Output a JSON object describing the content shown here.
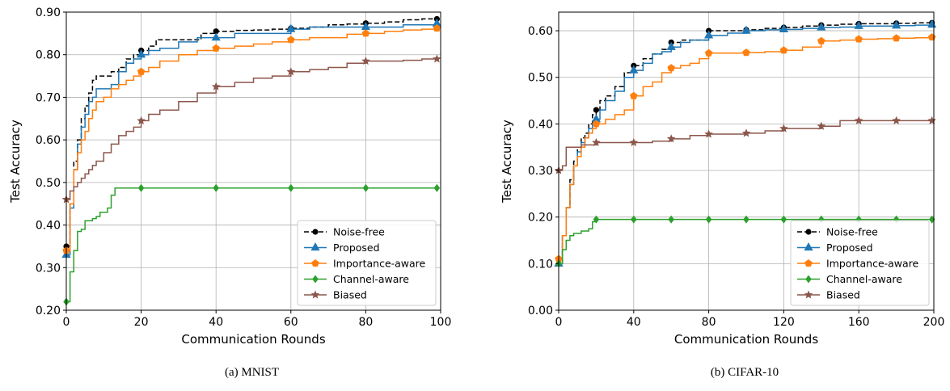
{
  "chart_data": [
    {
      "type": "line",
      "caption": "(a) MNIST",
      "xlabel": "Communication Rounds",
      "ylabel": "Test Accuracy",
      "xlim": [
        0,
        100
      ],
      "ylim": [
        0.2,
        0.9
      ],
      "xticks": [
        0,
        20,
        40,
        60,
        80,
        100
      ],
      "yticks": [
        0.2,
        0.3,
        0.4,
        0.5,
        0.6,
        0.7,
        0.8,
        0.9
      ],
      "x_tick_labels": [
        "0",
        "20",
        "40",
        "60",
        "80",
        "100"
      ],
      "y_tick_labels": [
        "0.20",
        "0.30",
        "0.40",
        "0.50",
        "0.60",
        "0.70",
        "0.80",
        "0.90"
      ],
      "grid": true,
      "legend_position": "lower-right",
      "series": [
        {
          "name": "Noise-free",
          "color": "#000000",
          "dashed": true,
          "marker": "circle",
          "x": [
            0,
            1,
            2,
            3,
            4,
            5,
            6,
            7,
            8,
            10,
            12,
            14,
            16,
            18,
            20,
            22,
            24,
            28,
            32,
            36,
            40,
            45,
            50,
            55,
            60,
            65,
            70,
            75,
            80,
            85,
            90,
            95,
            99
          ],
          "y": [
            0.35,
            0.45,
            0.55,
            0.6,
            0.65,
            0.68,
            0.71,
            0.74,
            0.75,
            0.75,
            0.76,
            0.77,
            0.79,
            0.8,
            0.81,
            0.82,
            0.835,
            0.835,
            0.835,
            0.85,
            0.855,
            0.857,
            0.858,
            0.86,
            0.862,
            0.865,
            0.87,
            0.872,
            0.874,
            0.877,
            0.882,
            0.884,
            0.884
          ],
          "marker_x": [
            0,
            20,
            40,
            60,
            80,
            99
          ],
          "marker_y": [
            0.35,
            0.81,
            0.855,
            0.862,
            0.874,
            0.884
          ]
        },
        {
          "name": "Proposed",
          "color": "#1f77b4",
          "dashed": false,
          "marker": "triangle",
          "x": [
            0,
            1,
            2,
            3,
            4,
            5,
            6,
            7,
            8,
            10,
            12,
            14,
            16,
            18,
            20,
            22,
            25,
            30,
            35,
            40,
            45,
            50,
            55,
            60,
            65,
            70,
            80,
            90,
            99
          ],
          "y": [
            0.33,
            0.44,
            0.53,
            0.59,
            0.63,
            0.66,
            0.69,
            0.7,
            0.72,
            0.72,
            0.73,
            0.76,
            0.78,
            0.79,
            0.8,
            0.81,
            0.815,
            0.83,
            0.84,
            0.84,
            0.85,
            0.85,
            0.85,
            0.86,
            0.865,
            0.865,
            0.865,
            0.87,
            0.873
          ],
          "marker_x": [
            0,
            20,
            40,
            60,
            80,
            99
          ],
          "marker_y": [
            0.33,
            0.8,
            0.84,
            0.86,
            0.865,
            0.873
          ]
        },
        {
          "name": "Importance-aware",
          "color": "#ff7f0e",
          "dashed": false,
          "marker": "pentagon",
          "x": [
            0,
            1,
            2,
            3,
            4,
            5,
            6,
            7,
            8,
            10,
            12,
            14,
            16,
            18,
            20,
            22,
            25,
            30,
            35,
            40,
            45,
            50,
            55,
            60,
            65,
            70,
            75,
            80,
            85,
            90,
            95,
            99
          ],
          "y": [
            0.34,
            0.45,
            0.53,
            0.57,
            0.6,
            0.62,
            0.65,
            0.67,
            0.69,
            0.7,
            0.72,
            0.73,
            0.74,
            0.75,
            0.76,
            0.77,
            0.785,
            0.8,
            0.81,
            0.815,
            0.82,
            0.825,
            0.83,
            0.835,
            0.84,
            0.84,
            0.848,
            0.85,
            0.855,
            0.858,
            0.86,
            0.862
          ],
          "marker_x": [
            0,
            20,
            40,
            60,
            80,
            99
          ],
          "marker_y": [
            0.34,
            0.76,
            0.815,
            0.835,
            0.85,
            0.862
          ]
        },
        {
          "name": "Channel-aware",
          "color": "#2ca02c",
          "dashed": false,
          "marker": "diamond",
          "x": [
            0,
            1,
            2,
            3,
            4,
            5,
            6,
            7,
            8,
            9,
            10,
            11,
            12,
            13,
            20,
            40,
            60,
            80,
            99
          ],
          "y": [
            0.22,
            0.29,
            0.34,
            0.385,
            0.39,
            0.41,
            0.41,
            0.415,
            0.42,
            0.43,
            0.43,
            0.44,
            0.47,
            0.487,
            0.487,
            0.487,
            0.487,
            0.487,
            0.487
          ],
          "marker_x": [
            0,
            20,
            40,
            60,
            80,
            99
          ],
          "marker_y": [
            0.22,
            0.487,
            0.487,
            0.487,
            0.487,
            0.487
          ]
        },
        {
          "name": "Biased",
          "color": "#8c564b",
          "dashed": false,
          "marker": "star",
          "x": [
            0,
            1,
            2,
            3,
            4,
            5,
            6,
            7,
            8,
            10,
            12,
            14,
            16,
            18,
            20,
            22,
            25,
            30,
            35,
            40,
            45,
            50,
            55,
            60,
            65,
            70,
            75,
            80,
            85,
            90,
            95,
            99
          ],
          "y": [
            0.46,
            0.48,
            0.49,
            0.5,
            0.51,
            0.52,
            0.53,
            0.54,
            0.55,
            0.57,
            0.59,
            0.61,
            0.62,
            0.63,
            0.645,
            0.66,
            0.67,
            0.69,
            0.71,
            0.725,
            0.735,
            0.745,
            0.75,
            0.76,
            0.765,
            0.77,
            0.78,
            0.785,
            0.785,
            0.787,
            0.79,
            0.79
          ],
          "marker_x": [
            0,
            20,
            40,
            60,
            80,
            99
          ],
          "marker_y": [
            0.46,
            0.645,
            0.725,
            0.76,
            0.785,
            0.79
          ]
        }
      ]
    },
    {
      "type": "line",
      "caption": "(b) CIFAR-10",
      "xlabel": "Communication Rounds",
      "ylabel": "Test Accuracy",
      "xlim": [
        0,
        200
      ],
      "ylim": [
        0.0,
        0.64
      ],
      "xticks": [
        0,
        40,
        80,
        120,
        160,
        200
      ],
      "yticks": [
        0.0,
        0.1,
        0.2,
        0.3,
        0.4,
        0.5,
        0.6
      ],
      "x_tick_labels": [
        "0",
        "40",
        "80",
        "120",
        "160",
        "200"
      ],
      "y_tick_labels": [
        "0.00",
        "0.10",
        "0.20",
        "0.30",
        "0.40",
        "0.50",
        "0.60"
      ],
      "grid": true,
      "legend_position": "lower-right",
      "series": [
        {
          "name": "Noise-free",
          "color": "#000000",
          "dashed": true,
          "marker": "circle",
          "x": [
            0,
            2,
            4,
            6,
            8,
            10,
            12,
            14,
            16,
            18,
            20,
            22,
            25,
            30,
            35,
            40,
            45,
            50,
            55,
            60,
            65,
            70,
            80,
            90,
            100,
            110,
            120,
            130,
            140,
            150,
            160,
            170,
            180,
            190,
            199
          ],
          "y": [
            0.11,
            0.16,
            0.22,
            0.28,
            0.32,
            0.35,
            0.37,
            0.38,
            0.4,
            0.42,
            0.43,
            0.45,
            0.46,
            0.48,
            0.51,
            0.525,
            0.54,
            0.55,
            0.56,
            0.575,
            0.58,
            0.58,
            0.6,
            0.6,
            0.602,
            0.605,
            0.607,
            0.61,
            0.612,
            0.614,
            0.615,
            0.615,
            0.616,
            0.617,
            0.617
          ],
          "marker_x": [
            0,
            20,
            40,
            60,
            80,
            100,
            120,
            140,
            160,
            180,
            199
          ],
          "marker_y": [
            0.11,
            0.43,
            0.525,
            0.575,
            0.6,
            0.602,
            0.607,
            0.612,
            0.615,
            0.616,
            0.617
          ]
        },
        {
          "name": "Proposed",
          "color": "#1f77b4",
          "dashed": false,
          "marker": "triangle",
          "x": [
            0,
            2,
            4,
            6,
            8,
            10,
            12,
            14,
            16,
            18,
            20,
            22,
            25,
            30,
            35,
            40,
            45,
            50,
            55,
            60,
            65,
            70,
            80,
            90,
            100,
            110,
            120,
            130,
            140,
            150,
            160,
            170,
            180,
            190,
            199
          ],
          "y": [
            0.1,
            0.16,
            0.22,
            0.27,
            0.31,
            0.34,
            0.36,
            0.37,
            0.39,
            0.4,
            0.41,
            0.43,
            0.45,
            0.47,
            0.5,
            0.515,
            0.53,
            0.55,
            0.555,
            0.565,
            0.575,
            0.58,
            0.59,
            0.595,
            0.6,
            0.602,
            0.603,
            0.605,
            0.607,
            0.608,
            0.61,
            0.61,
            0.611,
            0.612,
            0.613
          ],
          "marker_x": [
            0,
            20,
            40,
            60,
            80,
            100,
            120,
            140,
            160,
            180,
            199
          ],
          "marker_y": [
            0.1,
            0.41,
            0.515,
            0.565,
            0.59,
            0.6,
            0.603,
            0.607,
            0.61,
            0.611,
            0.613
          ]
        },
        {
          "name": "Importance-aware",
          "color": "#ff7f0e",
          "dashed": false,
          "marker": "pentagon",
          "x": [
            0,
            2,
            4,
            6,
            8,
            10,
            12,
            14,
            16,
            18,
            20,
            22,
            25,
            30,
            35,
            40,
            45,
            50,
            55,
            60,
            65,
            70,
            75,
            80,
            90,
            100,
            110,
            120,
            130,
            140,
            150,
            160,
            170,
            180,
            190,
            199
          ],
          "y": [
            0.11,
            0.16,
            0.22,
            0.27,
            0.31,
            0.33,
            0.35,
            0.37,
            0.38,
            0.39,
            0.4,
            0.4,
            0.41,
            0.42,
            0.43,
            0.46,
            0.48,
            0.49,
            0.51,
            0.52,
            0.525,
            0.53,
            0.54,
            0.552,
            0.552,
            0.553,
            0.555,
            0.558,
            0.565,
            0.578,
            0.58,
            0.582,
            0.583,
            0.584,
            0.585,
            0.586
          ],
          "marker_x": [
            0,
            20,
            40,
            60,
            80,
            100,
            120,
            140,
            160,
            180,
            199
          ],
          "marker_y": [
            0.11,
            0.4,
            0.46,
            0.52,
            0.552,
            0.553,
            0.558,
            0.578,
            0.582,
            0.584,
            0.586
          ]
        },
        {
          "name": "Channel-aware",
          "color": "#2ca02c",
          "dashed": false,
          "marker": "diamond",
          "x": [
            0,
            2,
            4,
            6,
            8,
            10,
            12,
            14,
            16,
            18,
            20,
            40,
            60,
            80,
            100,
            120,
            140,
            160,
            180,
            199
          ],
          "y": [
            0.1,
            0.13,
            0.15,
            0.16,
            0.165,
            0.165,
            0.17,
            0.17,
            0.175,
            0.19,
            0.195,
            0.195,
            0.195,
            0.195,
            0.195,
            0.195,
            0.195,
            0.195,
            0.195,
            0.195
          ],
          "marker_x": [
            0,
            20,
            40,
            60,
            80,
            100,
            120,
            140,
            160,
            180,
            199
          ],
          "marker_y": [
            0.1,
            0.195,
            0.195,
            0.195,
            0.195,
            0.195,
            0.195,
            0.195,
            0.195,
            0.195,
            0.195
          ]
        },
        {
          "name": "Biased",
          "color": "#8c564b",
          "dashed": false,
          "marker": "star",
          "x": [
            0,
            2,
            4,
            8,
            12,
            16,
            20,
            30,
            40,
            50,
            60,
            70,
            80,
            90,
            100,
            110,
            120,
            130,
            140,
            150,
            160,
            170,
            180,
            190,
            199
          ],
          "y": [
            0.3,
            0.31,
            0.35,
            0.35,
            0.355,
            0.355,
            0.36,
            0.36,
            0.36,
            0.363,
            0.368,
            0.375,
            0.378,
            0.378,
            0.38,
            0.385,
            0.39,
            0.39,
            0.395,
            0.407,
            0.407,
            0.407,
            0.407,
            0.407,
            0.407
          ],
          "marker_x": [
            0,
            20,
            40,
            60,
            80,
            100,
            120,
            140,
            160,
            180,
            199
          ],
          "marker_y": [
            0.3,
            0.36,
            0.36,
            0.368,
            0.378,
            0.38,
            0.39,
            0.395,
            0.407,
            0.407,
            0.407
          ]
        }
      ]
    }
  ]
}
